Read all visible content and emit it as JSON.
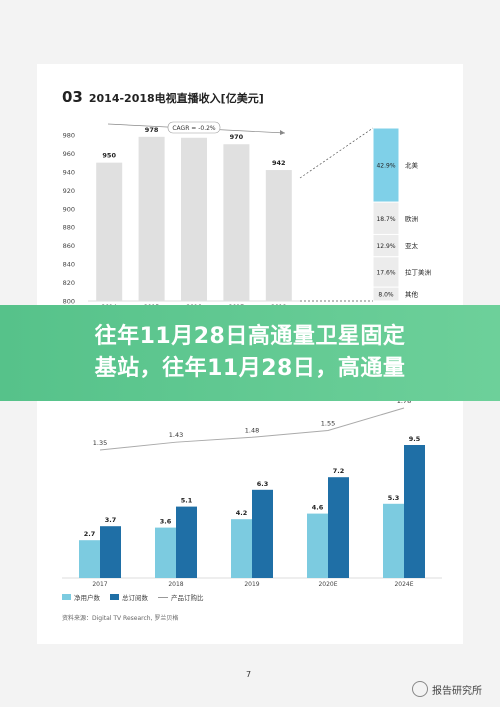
{
  "doc": {
    "section_number": "03",
    "section_title": "2014-2018电视直播收入[亿美元]",
    "banner_line1": "往年11月28日高通量卫星固定",
    "banner_line2": "基站，往年11月28日，高通量",
    "source": "资料来源：Digital TV Research, 罗兰贝格",
    "page_number": "7",
    "watermark": "报告研究所"
  },
  "colors": {
    "bar_gray": "#e0e0e0",
    "pie_highlight": "#7fd0e8",
    "light_blue": "#7ccbe0",
    "dark_blue": "#1f6fa6",
    "banner_green": "#5cc790"
  },
  "chart_data": [
    {
      "type": "bar",
      "categories": [
        "2014",
        "2015",
        "2016",
        "2017",
        "2018"
      ],
      "values": [
        950,
        978,
        977,
        970,
        942
      ],
      "ylim": [
        800,
        980
      ],
      "yticks": [
        800,
        820,
        840,
        860,
        880,
        900,
        920,
        940,
        960,
        980
      ],
      "annotation": "CAGR = -0.2%",
      "breakdown": [
        {
          "label": "北美",
          "value": "42.9%"
        },
        {
          "label": "欧洲",
          "value": "18.7%"
        },
        {
          "label": "亚太",
          "value": "12.9%"
        },
        {
          "label": "拉丁美洲",
          "value": "17.6%"
        },
        {
          "label": "其他",
          "value": "8.0%"
        }
      ]
    },
    {
      "type": "bar",
      "categories": [
        "2017",
        "2018",
        "2019",
        "2020E",
        "2024E"
      ],
      "series": [
        {
          "name": "净用户数",
          "values": [
            2.7,
            3.6,
            4.2,
            4.6,
            5.3
          ]
        },
        {
          "name": "总订阅数",
          "values": [
            3.7,
            5.1,
            6.3,
            7.2,
            9.5
          ]
        }
      ],
      "line": {
        "name": "产品订购比",
        "values": [
          1.35,
          1.43,
          1.48,
          1.55,
          1.78
        ]
      },
      "ylim": [
        0,
        10
      ]
    }
  ]
}
